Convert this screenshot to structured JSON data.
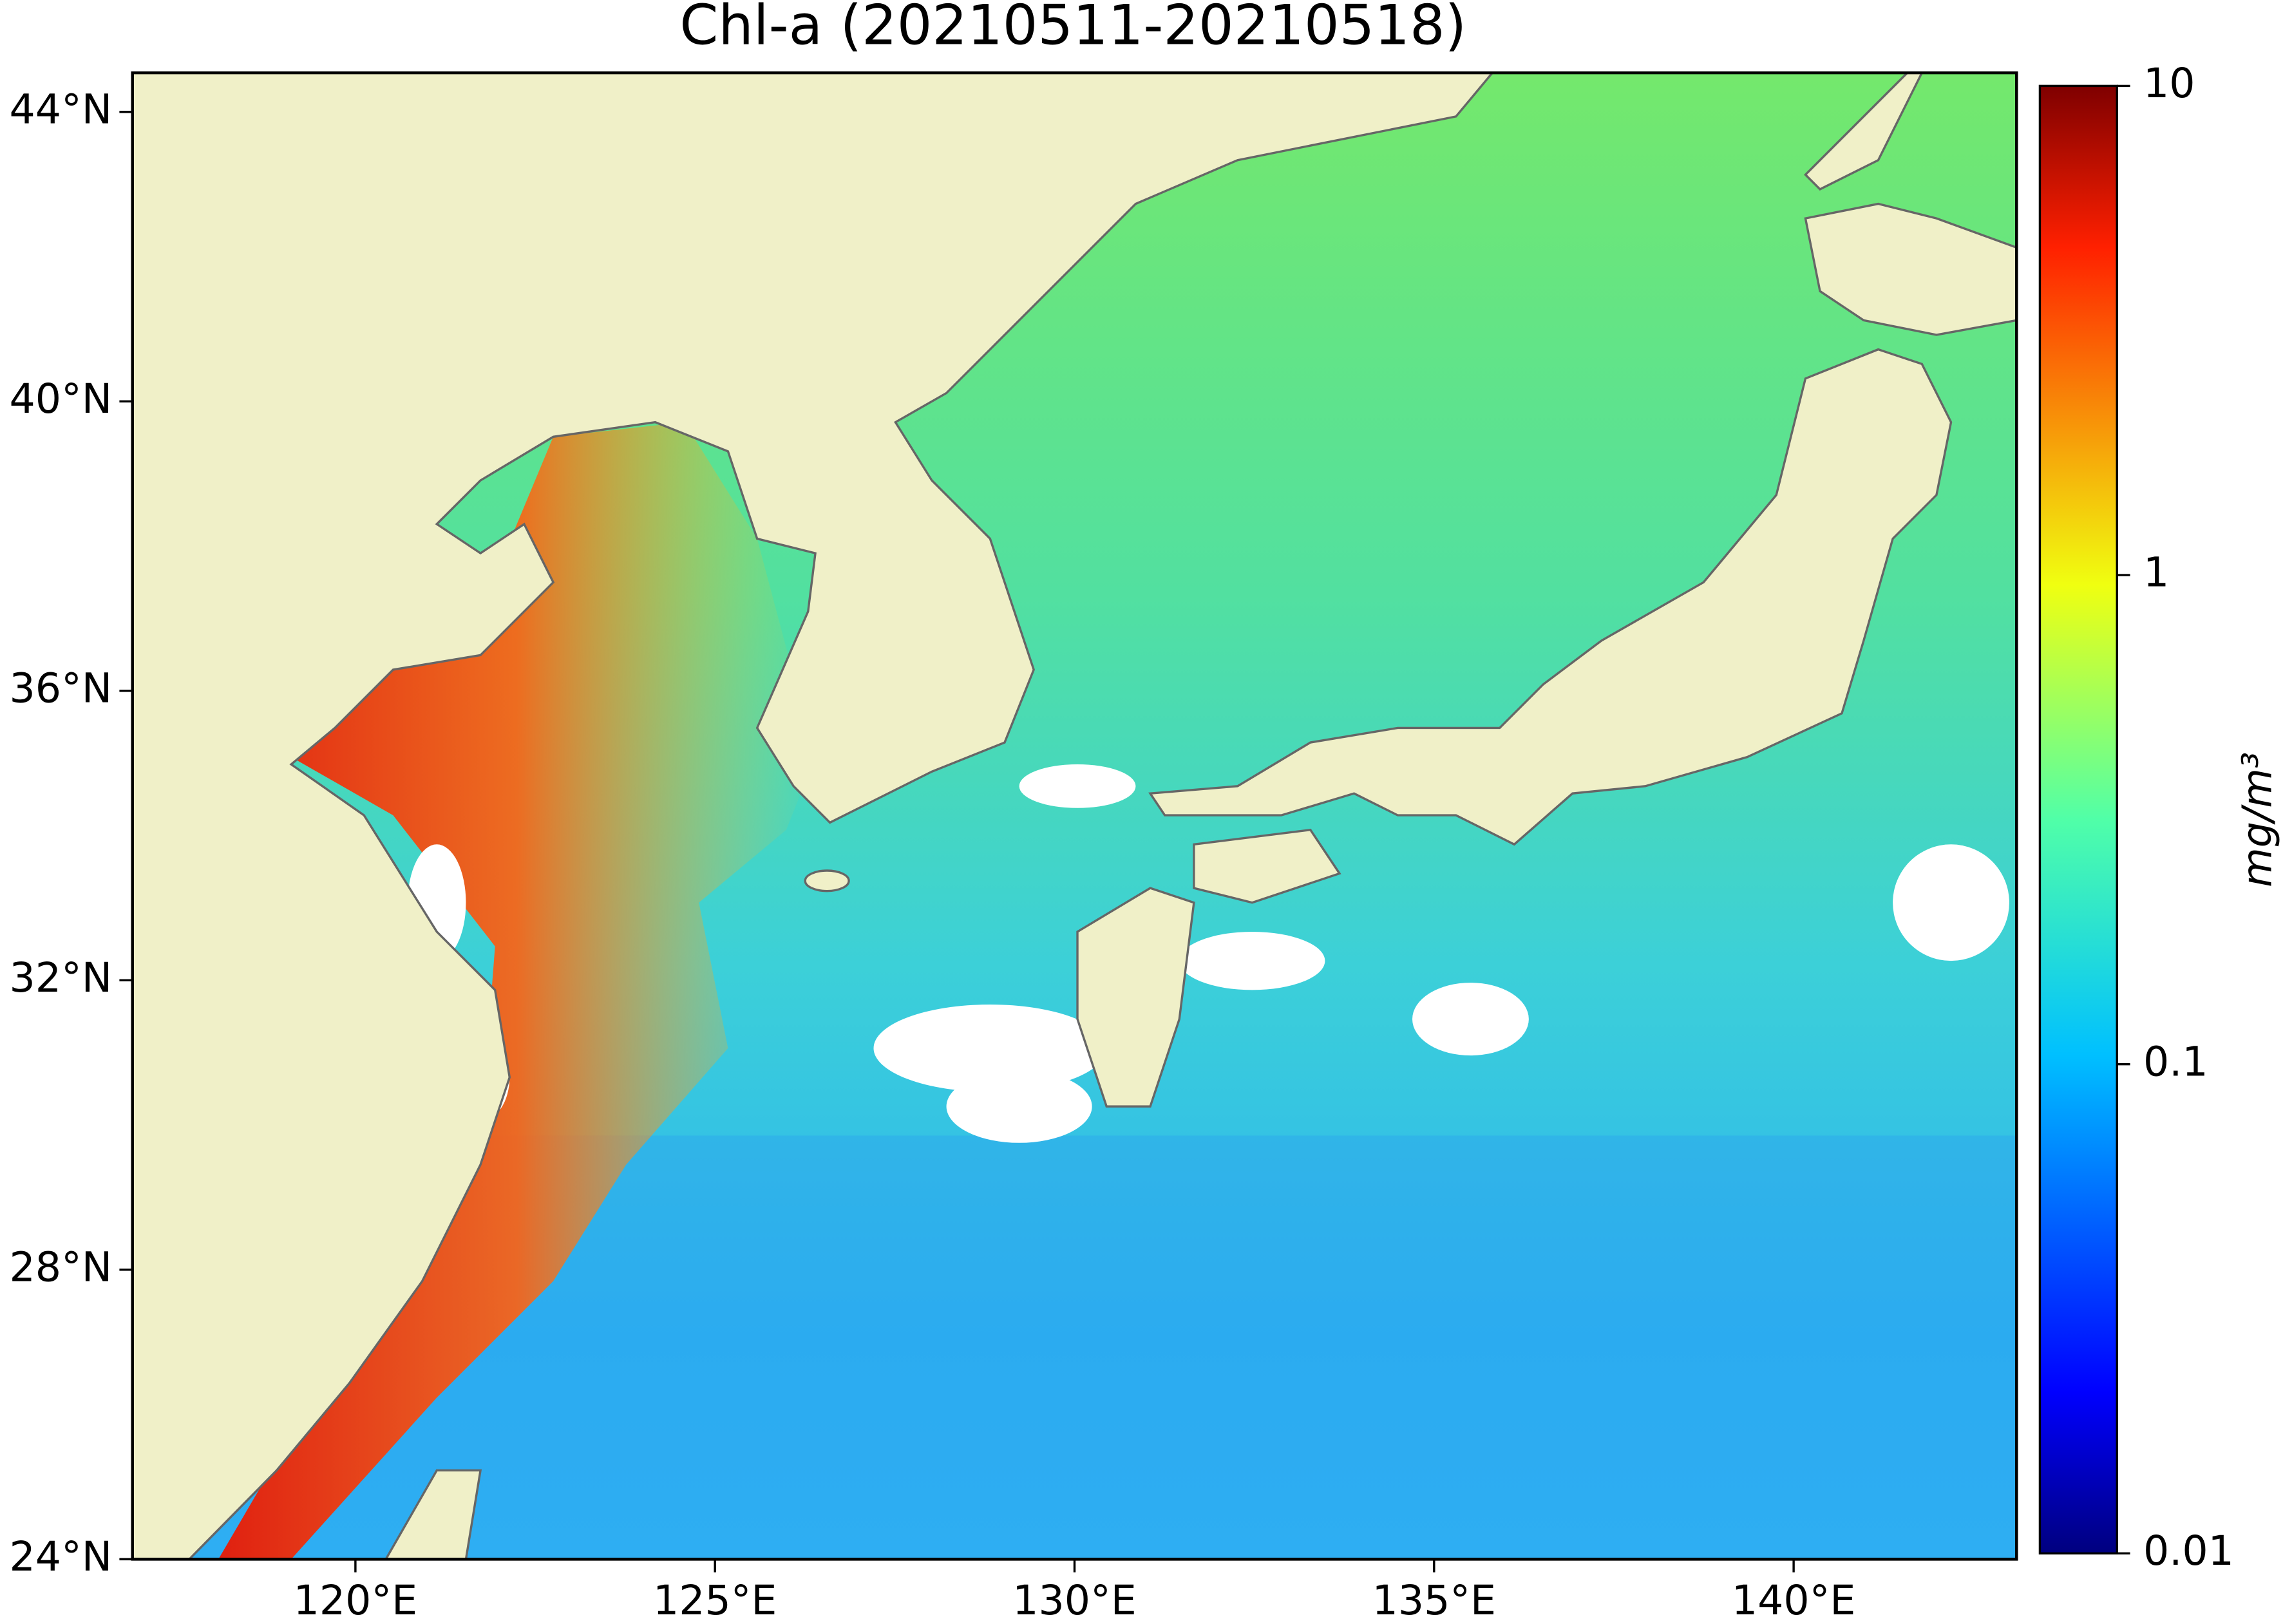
{
  "map": {
    "title": "Chl-a (20210511-20210518)",
    "xlim": [
      116.9,
      143.1
    ],
    "ylim": [
      24,
      44.54
    ],
    "xticks": [
      {
        "value": 120,
        "label": "120°E"
      },
      {
        "value": 125,
        "label": "125°E"
      },
      {
        "value": 130,
        "label": "130°E"
      },
      {
        "value": 135,
        "label": "135°E"
      },
      {
        "value": 140,
        "label": "140°E"
      }
    ],
    "yticks": [
      {
        "value": 24,
        "label": "24°N"
      },
      {
        "value": 28,
        "label": "28°N"
      },
      {
        "value": 32,
        "label": "32°N"
      },
      {
        "value": 36,
        "label": "36°N"
      },
      {
        "value": 40,
        "label": "40°N"
      },
      {
        "value": 44,
        "label": "44°N"
      }
    ],
    "colorbar": {
      "label": "mg/m³",
      "scale": "log",
      "lim": [
        0.01,
        10
      ],
      "ticks": [
        0.01,
        0.1,
        1,
        10
      ],
      "colormap": "jet"
    }
  }
}
